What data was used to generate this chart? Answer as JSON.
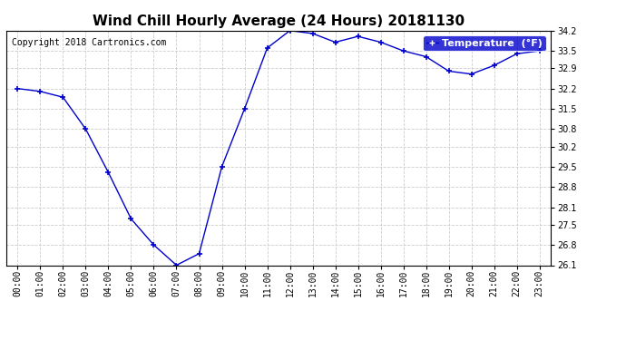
{
  "title": "Wind Chill Hourly Average (24 Hours) 20181130",
  "copyright_text": "Copyright 2018 Cartronics.com",
  "legend_label": "Temperature  (°F)",
  "hours": [
    "00:00",
    "01:00",
    "02:00",
    "03:00",
    "04:00",
    "05:00",
    "06:00",
    "07:00",
    "08:00",
    "09:00",
    "10:00",
    "11:00",
    "12:00",
    "13:00",
    "14:00",
    "15:00",
    "16:00",
    "17:00",
    "18:00",
    "19:00",
    "20:00",
    "21:00",
    "22:00",
    "23:00"
  ],
  "values": [
    32.2,
    32.1,
    31.9,
    30.8,
    29.3,
    27.7,
    26.8,
    26.1,
    26.5,
    29.5,
    31.5,
    33.6,
    34.2,
    34.1,
    33.8,
    34.0,
    33.8,
    33.5,
    33.3,
    32.8,
    32.7,
    33.0,
    33.4,
    33.5
  ],
  "line_color": "#0000cc",
  "marker": "+",
  "marker_size": 5,
  "marker_edge_width": 1.2,
  "line_width": 1.0,
  "ylim_min": 26.1,
  "ylim_max": 34.2,
  "yticks": [
    26.1,
    26.8,
    27.5,
    28.1,
    28.8,
    29.5,
    30.2,
    30.8,
    31.5,
    32.2,
    32.9,
    33.5,
    34.2
  ],
  "figure_bg_color": "#ffffff",
  "plot_bg_color": "#ffffff",
  "grid_color": "#cccccc",
  "title_fontsize": 11,
  "tick_fontsize": 7,
  "copyright_fontsize": 7,
  "legend_bg_color": "#0000cc",
  "legend_text_color": "#ffffff",
  "legend_fontsize": 8
}
